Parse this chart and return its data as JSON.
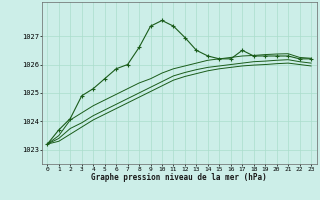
{
  "xlabel": "Graphe pression niveau de la mer (hPa)",
  "bg_color": "#cceee8",
  "grid_color": "#aaddcc",
  "line_color": "#1a5c1a",
  "xlim": [
    -0.5,
    23.5
  ],
  "ylim": [
    1022.5,
    1028.2
  ],
  "yticks": [
    1023,
    1024,
    1025,
    1026,
    1027
  ],
  "xticks": [
    0,
    1,
    2,
    3,
    4,
    5,
    6,
    7,
    8,
    9,
    10,
    11,
    12,
    13,
    14,
    15,
    16,
    17,
    18,
    19,
    20,
    21,
    22,
    23
  ],
  "series1_x": [
    0,
    1,
    2,
    3,
    4,
    5,
    6,
    7,
    8,
    9,
    10,
    11,
    12,
    13,
    14,
    15,
    16,
    17,
    18,
    19,
    20,
    21,
    22,
    23
  ],
  "series1_y": [
    1023.2,
    1023.7,
    1024.1,
    1024.9,
    1025.15,
    1025.5,
    1025.85,
    1026.0,
    1026.6,
    1027.35,
    1027.55,
    1027.35,
    1026.95,
    1026.5,
    1026.3,
    1026.2,
    1026.2,
    1026.5,
    1026.3,
    1026.3,
    1026.3,
    1026.3,
    1026.2,
    1026.2
  ],
  "series2_x": [
    0,
    1,
    2,
    3,
    4,
    5,
    6,
    7,
    8,
    9,
    10,
    11,
    12,
    13,
    14,
    15,
    16,
    17,
    18,
    19,
    20,
    21,
    22,
    23
  ],
  "series2_y": [
    1023.2,
    1023.5,
    1024.05,
    1024.3,
    1024.55,
    1024.75,
    1024.95,
    1025.15,
    1025.35,
    1025.5,
    1025.7,
    1025.85,
    1025.95,
    1026.05,
    1026.15,
    1026.2,
    1026.25,
    1026.3,
    1026.32,
    1026.35,
    1026.37,
    1026.38,
    1026.25,
    1026.22
  ],
  "series3_x": [
    0,
    1,
    2,
    3,
    4,
    5,
    6,
    7,
    8,
    9,
    10,
    11,
    12,
    13,
    14,
    15,
    16,
    17,
    18,
    19,
    20,
    21,
    22,
    23
  ],
  "series3_y": [
    1023.2,
    1023.4,
    1023.75,
    1023.95,
    1024.2,
    1024.4,
    1024.6,
    1024.8,
    1025.0,
    1025.2,
    1025.4,
    1025.6,
    1025.72,
    1025.82,
    1025.9,
    1025.95,
    1026.0,
    1026.05,
    1026.1,
    1026.12,
    1026.15,
    1026.17,
    1026.1,
    1026.05
  ],
  "series4_x": [
    0,
    1,
    2,
    3,
    4,
    5,
    6,
    7,
    8,
    9,
    10,
    11,
    12,
    13,
    14,
    15,
    16,
    17,
    18,
    19,
    20,
    21,
    22,
    23
  ],
  "series4_y": [
    1023.2,
    1023.3,
    1023.55,
    1023.8,
    1024.05,
    1024.25,
    1024.45,
    1024.65,
    1024.85,
    1025.05,
    1025.25,
    1025.45,
    1025.58,
    1025.68,
    1025.78,
    1025.85,
    1025.9,
    1025.95,
    1025.98,
    1026.0,
    1026.03,
    1026.05,
    1026.0,
    1025.95
  ]
}
